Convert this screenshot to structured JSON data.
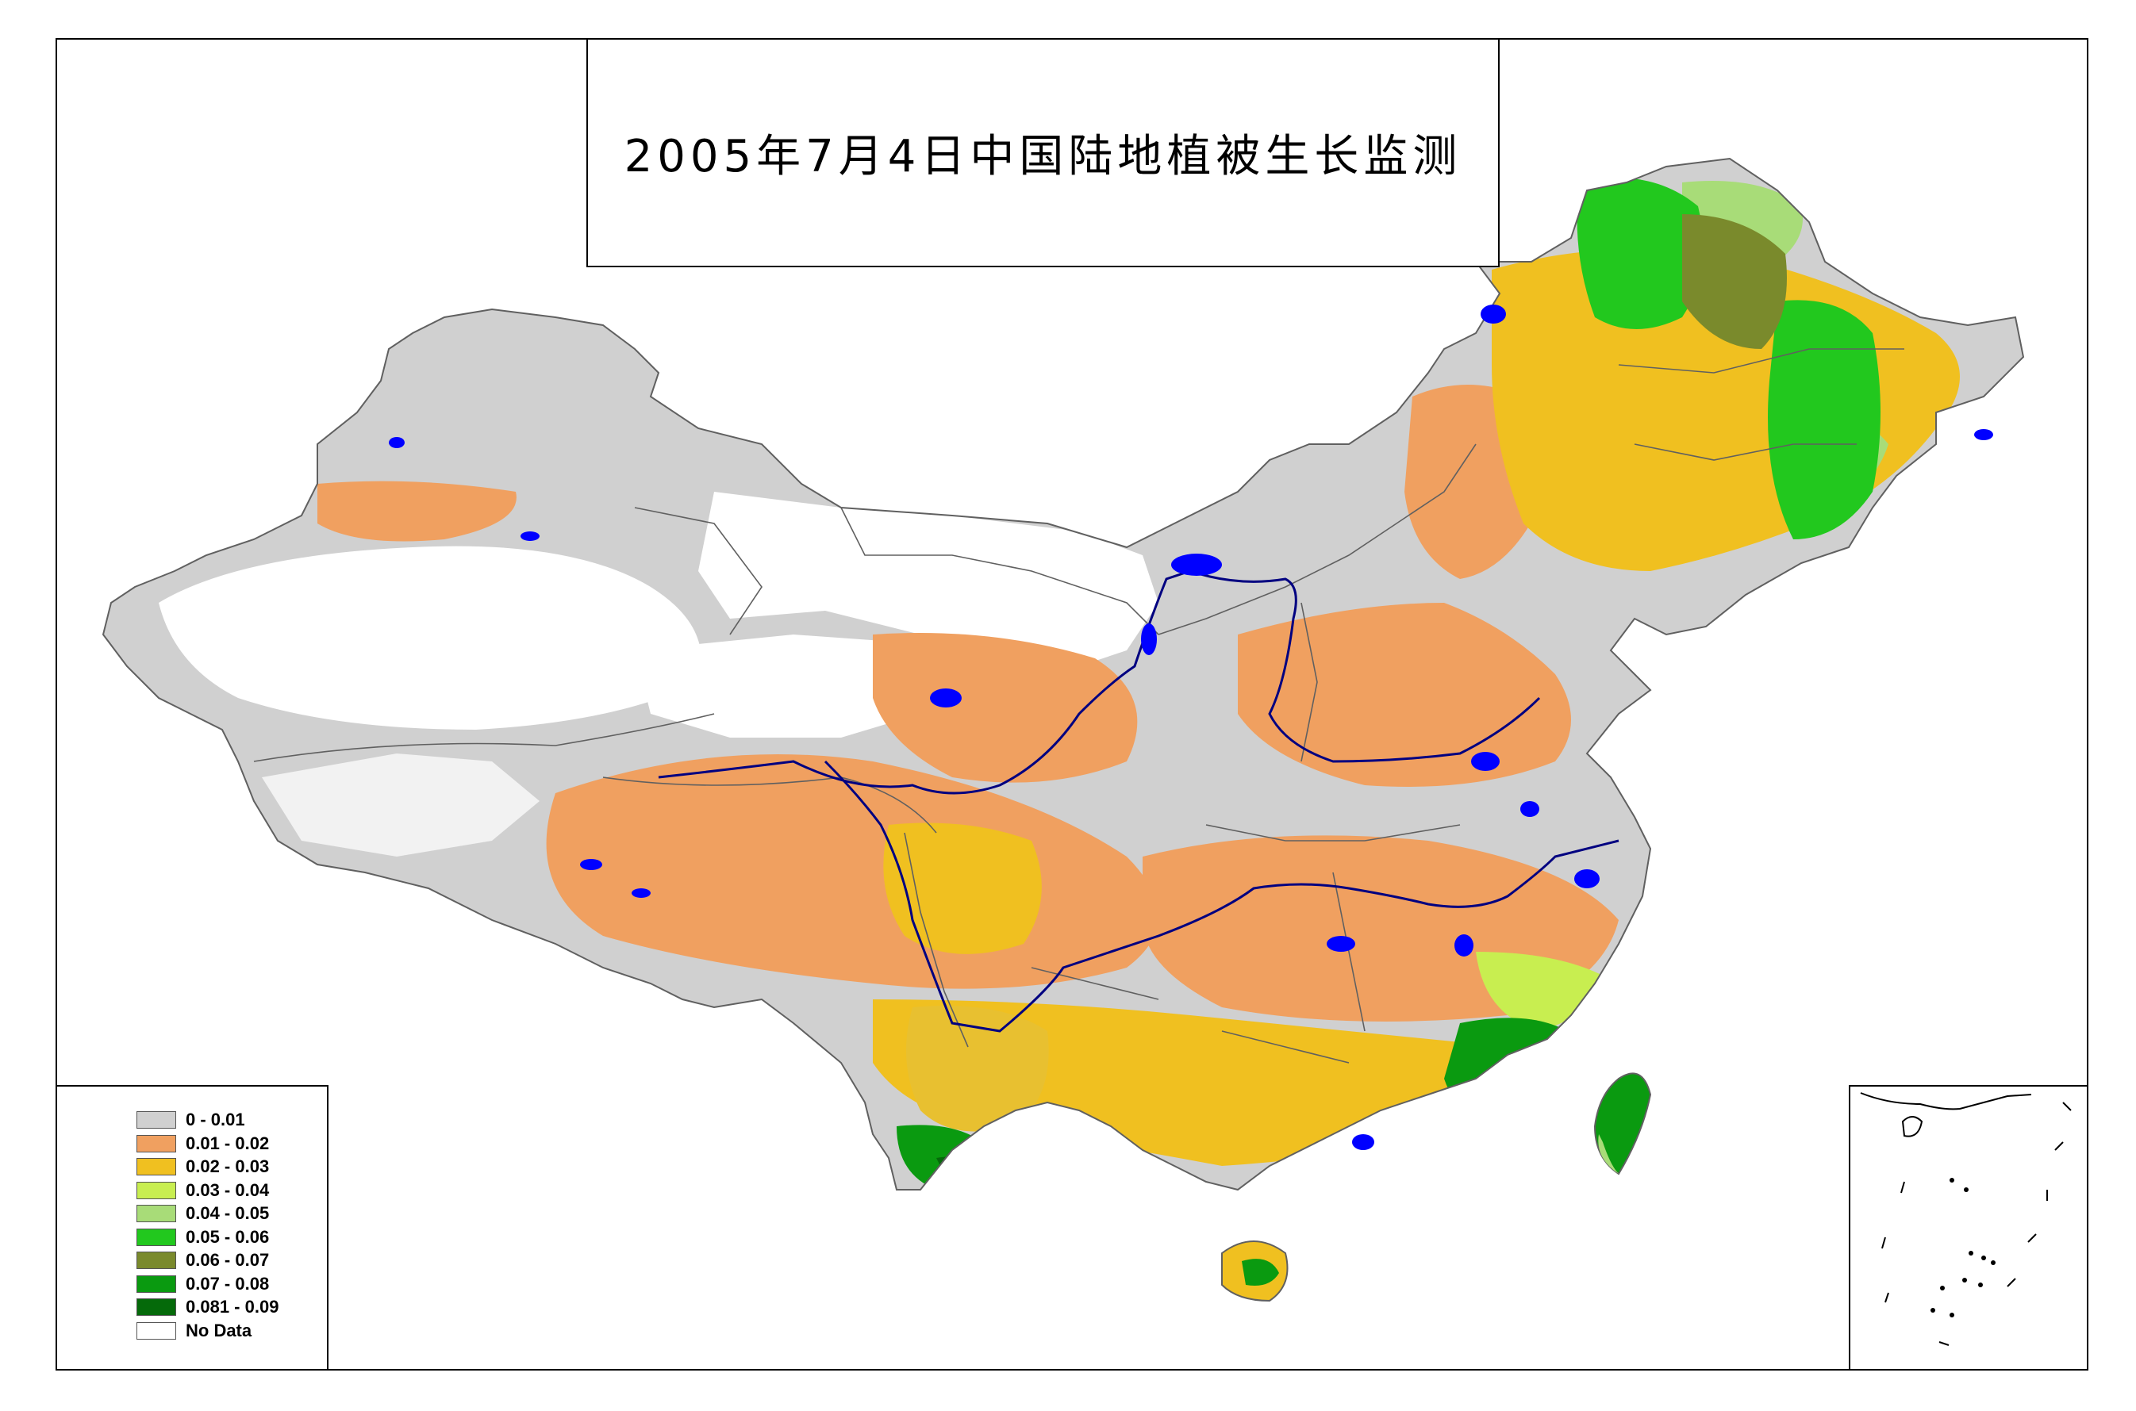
{
  "title": "2005年7月4日中国陆地植被生长监测",
  "legend": {
    "items": [
      {
        "label": "0 - 0.01",
        "color": "#d0d0d0"
      },
      {
        "label": "0.01 - 0.02",
        "color": "#f0a060"
      },
      {
        "label": "0.02 - 0.03",
        "color": "#f0c020"
      },
      {
        "label": "0.03 - 0.04",
        "color": "#c8ee50"
      },
      {
        "label": "0.04 - 0.05",
        "color": "#a8dc78"
      },
      {
        "label": "0.05 - 0.06",
        "color": "#22c81e"
      },
      {
        "label": "0.06 - 0.07",
        "color": "#7a8a2c"
      },
      {
        "label": "0.07 - 0.08",
        "color": "#0a9a10"
      },
      {
        "label": "0.081 - 0.09",
        "color": "#056a0a"
      },
      {
        "label": "No Data",
        "color": "#ffffff"
      }
    ]
  },
  "colors": {
    "water": "#0000ff",
    "river": "#000080",
    "boundary": "#606060"
  }
}
